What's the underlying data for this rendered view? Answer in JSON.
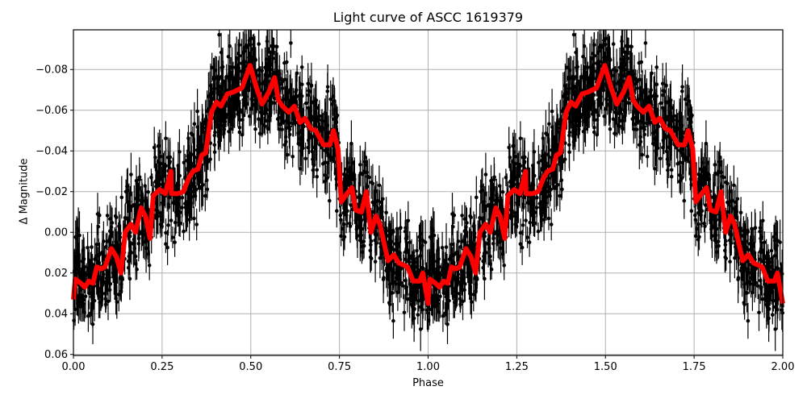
{
  "chart_data": {
    "type": "scatter",
    "title": "Light curve of ASCC 1619379",
    "xlabel": "Phase",
    "ylabel": "Δ Magnitude",
    "xlim": [
      0.0,
      2.0
    ],
    "ylim": [
      0.0605,
      -0.0995
    ],
    "y_inverted": true,
    "grid": true,
    "legend": null,
    "x_ticks": [
      0.0,
      0.25,
      0.5,
      0.75,
      1.0,
      1.25,
      1.5,
      1.75,
      2.0
    ],
    "x_tick_labels": [
      "0.00",
      "0.25",
      "0.50",
      "0.75",
      "1.00",
      "1.25",
      "1.50",
      "1.75",
      "2.00"
    ],
    "y_ticks": [
      -0.08,
      -0.06,
      -0.04,
      -0.02,
      0.0,
      0.02,
      0.04,
      0.06
    ],
    "y_tick_labels": [
      "−0.08",
      "−0.06",
      "−0.04",
      "−0.02",
      "0.00",
      "0.02",
      "0.04",
      "0.06"
    ],
    "series": [
      {
        "name": "observations",
        "type": "errorbar-scatter",
        "color": "#000000",
        "description": "Dense black points with vertical error bars (~0.005-0.015 mag), scatter ~±0.02 around binned curve, phase-folded and repeated over 0-2"
      },
      {
        "name": "binned model",
        "type": "line",
        "color": "#ff0000",
        "linewidth": 6,
        "phase": [
          0.0,
          0.005,
          0.021,
          0.032,
          0.043,
          0.055,
          0.066,
          0.078,
          0.089,
          0.107,
          0.121,
          0.134,
          0.146,
          0.162,
          0.175,
          0.191,
          0.203,
          0.216,
          0.225,
          0.243,
          0.259,
          0.275,
          0.276,
          0.294,
          0.31,
          0.326,
          0.337,
          0.349,
          0.351,
          0.362,
          0.373,
          0.389,
          0.403,
          0.416,
          0.434,
          0.452,
          0.475,
          0.498,
          0.516,
          0.532,
          0.551,
          0.567,
          0.578,
          0.589,
          0.607,
          0.623,
          0.639,
          0.653,
          0.669,
          0.683,
          0.705,
          0.723,
          0.733,
          0.746,
          0.755,
          0.771,
          0.785,
          0.796,
          0.812,
          0.826,
          0.839,
          0.853,
          0.864,
          0.887,
          0.903,
          0.917,
          0.942,
          0.958,
          0.976,
          0.985,
          1.0
        ],
        "magnitude": [
          0.033,
          0.023,
          0.025,
          0.027,
          0.024,
          0.025,
          0.017,
          0.018,
          0.017,
          0.008,
          0.012,
          0.02,
          0.0,
          -0.004,
          0.0,
          -0.012,
          -0.008,
          0.003,
          -0.018,
          -0.021,
          -0.019,
          -0.03,
          -0.019,
          -0.019,
          -0.02,
          -0.027,
          -0.03,
          -0.031,
          -0.031,
          -0.038,
          -0.039,
          -0.059,
          -0.064,
          -0.062,
          -0.068,
          -0.069,
          -0.071,
          -0.082,
          -0.071,
          -0.063,
          -0.069,
          -0.076,
          -0.065,
          -0.062,
          -0.059,
          -0.062,
          -0.054,
          -0.056,
          -0.051,
          -0.05,
          -0.043,
          -0.043,
          -0.05,
          -0.041,
          -0.015,
          -0.019,
          -0.022,
          -0.011,
          -0.01,
          -0.02,
          0.0,
          -0.008,
          -0.004,
          0.014,
          0.011,
          0.015,
          0.017,
          0.024,
          0.024,
          0.02,
          0.035
        ]
      }
    ]
  }
}
